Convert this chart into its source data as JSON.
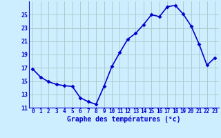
{
  "x": [
    0,
    1,
    2,
    3,
    4,
    5,
    6,
    7,
    8,
    9,
    10,
    11,
    12,
    13,
    14,
    15,
    16,
    17,
    18,
    19,
    20,
    21,
    22,
    23
  ],
  "y": [
    16.8,
    15.6,
    14.9,
    14.5,
    14.3,
    14.2,
    12.5,
    11.9,
    11.5,
    14.2,
    17.2,
    19.3,
    21.3,
    22.2,
    23.5,
    25.0,
    24.7,
    26.2,
    26.4,
    25.1,
    23.3,
    20.6,
    17.4,
    18.5
  ],
  "line_color": "#0000cc",
  "marker": "D",
  "marker_size": 2.5,
  "bg_color": "#cceeff",
  "grid_color": "#aacccc",
  "xlabel": "Graphe des températures (°c)",
  "xlabel_color": "#0000cc",
  "tick_color": "#0000cc",
  "ylim": [
    11,
    27
  ],
  "xlim": [
    -0.5,
    23.5
  ],
  "yticks": [
    11,
    13,
    15,
    17,
    19,
    21,
    23,
    25
  ],
  "xticks": [
    0,
    1,
    2,
    3,
    4,
    5,
    6,
    7,
    8,
    9,
    10,
    11,
    12,
    13,
    14,
    15,
    16,
    17,
    18,
    19,
    20,
    21,
    22,
    23
  ],
  "spine_color": "#0000cc",
  "linewidth": 1.2
}
